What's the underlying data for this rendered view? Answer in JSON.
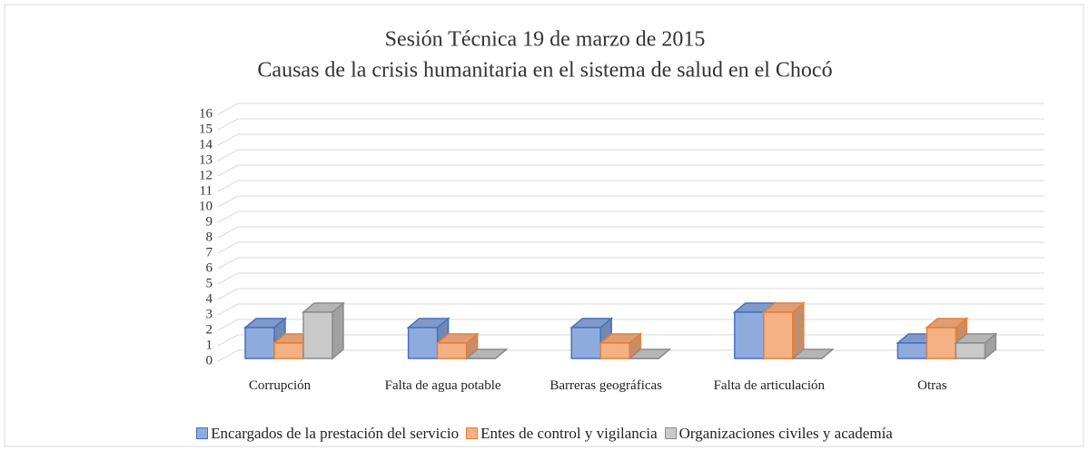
{
  "chart_data": {
    "type": "bar3d",
    "title": "Sesión Técnica 19 de marzo de 2015",
    "subtitle": "Causas de la crisis humanitaria en el sistema de salud en el Chocó",
    "categories": [
      "Corrupción",
      "Falta de agua potable",
      "Barreras geográficas",
      "Falta de articulación",
      "Otras"
    ],
    "series": [
      {
        "name": "Encargados de la prestación del servicio",
        "color": "#8faadc",
        "edge": "#4472c4",
        "values": [
          2,
          2,
          2,
          3,
          1
        ]
      },
      {
        "name": "Entes de control y vigilancia",
        "color": "#f4b183",
        "edge": "#ed7d31",
        "values": [
          1,
          1,
          1,
          3,
          2
        ]
      },
      {
        "name": "Organizaciones civiles y academía",
        "color": "#c9c9c9",
        "edge": "#8c8c8c",
        "values": [
          3,
          0,
          0,
          0,
          1
        ]
      }
    ],
    "ylim": [
      0,
      16
    ],
    "yticks": [
      0,
      1,
      2,
      3,
      4,
      5,
      6,
      7,
      8,
      9,
      10,
      11,
      12,
      13,
      14,
      15,
      16
    ],
    "grid": true,
    "legend": "bottom"
  }
}
